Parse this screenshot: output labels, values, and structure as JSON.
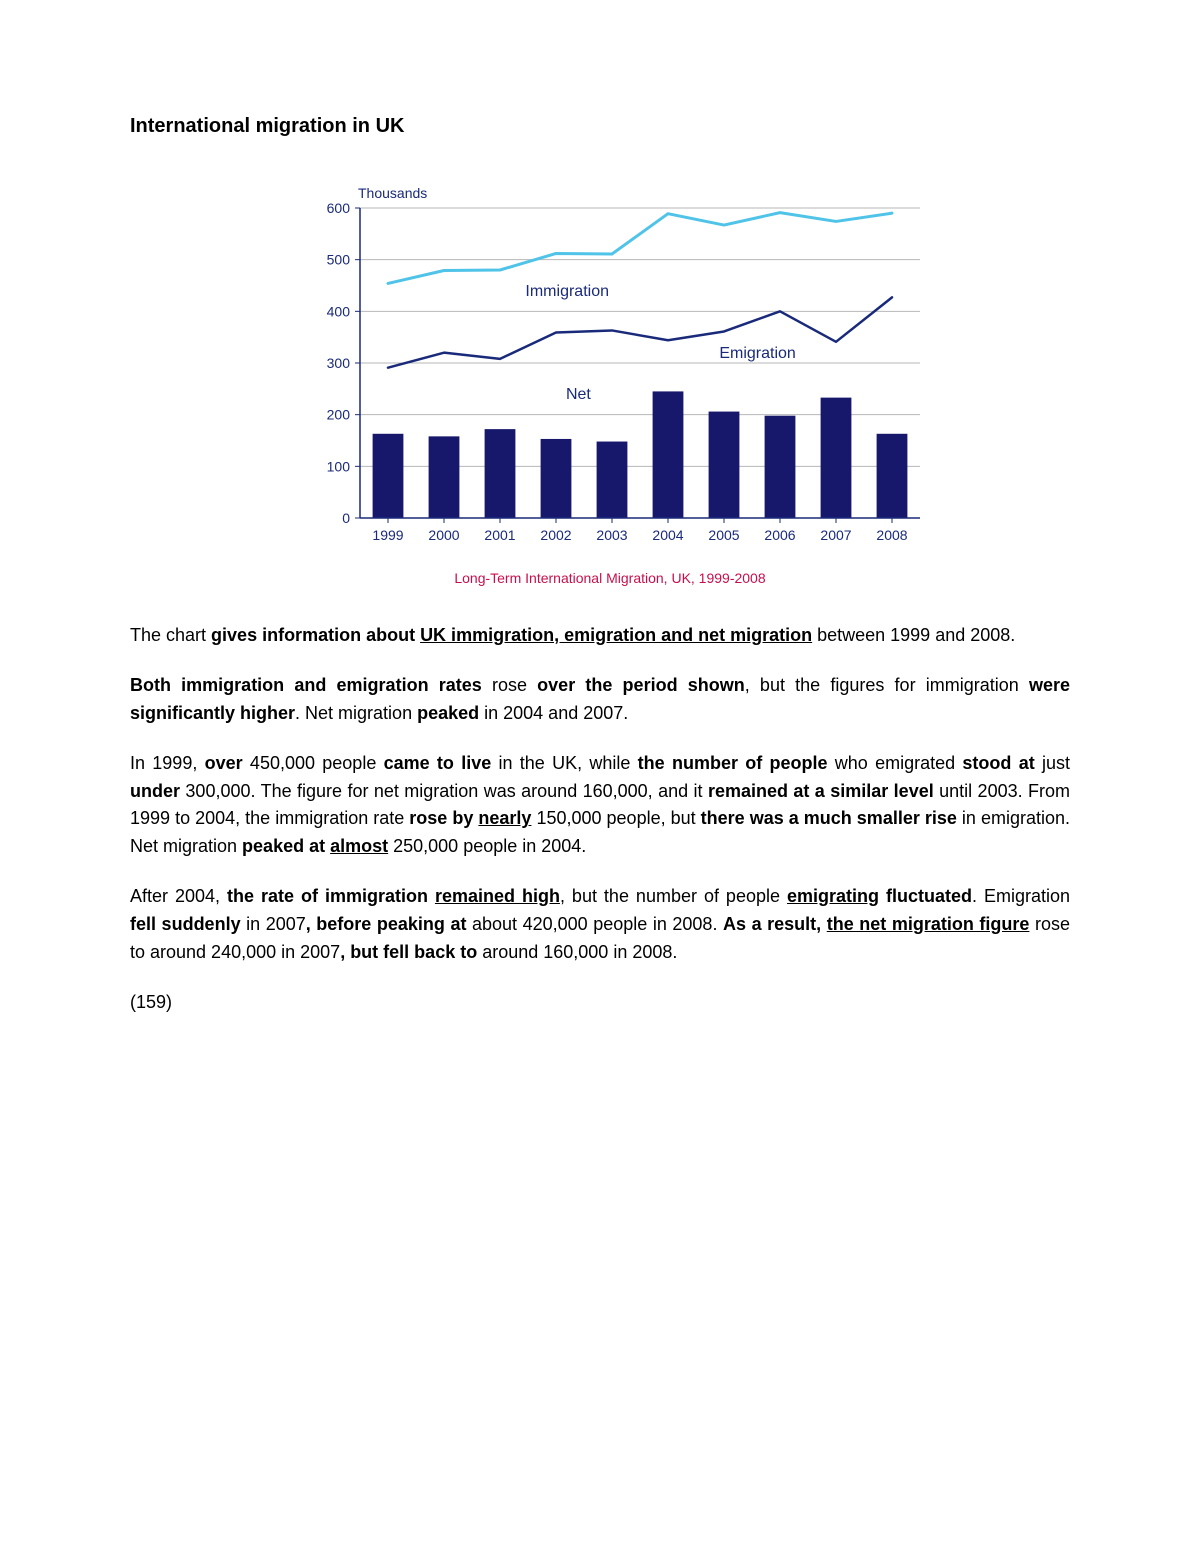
{
  "title": "International migration in UK",
  "chart": {
    "type": "combo-bar-line",
    "y_axis_title": "Thousands",
    "caption": "Long-Term International Migration, UK, 1999-2008",
    "categories": [
      "1999",
      "2000",
      "2001",
      "2002",
      "2003",
      "2004",
      "2005",
      "2006",
      "2007",
      "2008"
    ],
    "ylim": [
      0,
      600
    ],
    "ytick_step": 100,
    "grid_color": "#b7b7b7",
    "axis_color": "#1a2a7a",
    "background_color": "#ffffff",
    "bar": {
      "label": "Net",
      "values": [
        163,
        158,
        172,
        153,
        148,
        245,
        206,
        198,
        233,
        163
      ],
      "color": "#17176b",
      "bar_width_ratio": 0.55
    },
    "lines": [
      {
        "label": "Immigration",
        "values": [
          454,
          479,
          480,
          512,
          511,
          589,
          567,
          591,
          574,
          590
        ],
        "color": "#4fc3e8",
        "width": 3
      },
      {
        "label": "Emigration",
        "values": [
          291,
          320,
          308,
          359,
          363,
          344,
          361,
          400,
          341,
          427
        ],
        "color": "#1a2a7a",
        "width": 2.5
      }
    ],
    "label_positions": {
      "Immigration": {
        "x_cat_index": 3.2,
        "y": 430
      },
      "Emigration": {
        "x_cat_index": 6.6,
        "y": 310
      },
      "Net": {
        "x_cat_index": 3.4,
        "y": 230
      }
    },
    "title_fontsize": 14,
    "tick_fontsize": 14,
    "caption_color": "#c80f4b"
  },
  "paragraphs": {
    "p1": [
      {
        "t": "The chart ",
        "s": ""
      },
      {
        "t": "gives information about ",
        "s": "b"
      },
      {
        "t": "UK immigration, emigration and net migration",
        "s": "bu"
      },
      {
        "t": " between 1999 and 2008.",
        "s": ""
      }
    ],
    "p2": [
      {
        "t": "Both immigration and emigration rates",
        "s": "b"
      },
      {
        "t": " rose ",
        "s": ""
      },
      {
        "t": "over the period shown",
        "s": "b"
      },
      {
        "t": ", but the figures for immigration ",
        "s": ""
      },
      {
        "t": "were significantly higher",
        "s": "b"
      },
      {
        "t": ". Net migration ",
        "s": ""
      },
      {
        "t": "peaked",
        "s": "b"
      },
      {
        "t": " in 2004 and 2007.",
        "s": ""
      }
    ],
    "p3": [
      {
        "t": "In 1999, ",
        "s": ""
      },
      {
        "t": "over",
        "s": "b"
      },
      {
        "t": " 450,000 people ",
        "s": ""
      },
      {
        "t": "came to live",
        "s": "b"
      },
      {
        "t": " in the UK, while ",
        "s": ""
      },
      {
        "t": "the number of people",
        "s": "b"
      },
      {
        "t": " who emigrated ",
        "s": ""
      },
      {
        "t": "stood at",
        "s": "b"
      },
      {
        "t": " just ",
        "s": ""
      },
      {
        "t": "under",
        "s": "b"
      },
      {
        "t": " 300,000. The figure for net migration was around 160,000, and it ",
        "s": ""
      },
      {
        "t": "remained at a similar level",
        "s": "b"
      },
      {
        "t": " until 2003. From 1999 to 2004, the immigration rate ",
        "s": ""
      },
      {
        "t": "rose by ",
        "s": "b"
      },
      {
        "t": "nearly",
        "s": "bu"
      },
      {
        "t": " 150,000 people, but ",
        "s": ""
      },
      {
        "t": "there was a much smaller rise",
        "s": "b"
      },
      {
        "t": " in emigration. Net migration ",
        "s": ""
      },
      {
        "t": "peaked at ",
        "s": "b"
      },
      {
        "t": "almost",
        "s": "bu"
      },
      {
        "t": " 250,000 people in 2004.",
        "s": ""
      }
    ],
    "p4": [
      {
        "t": "After 2004, ",
        "s": ""
      },
      {
        "t": "the rate of immigration ",
        "s": "b"
      },
      {
        "t": "remained high",
        "s": "bu"
      },
      {
        "t": ", but the number of people ",
        "s": ""
      },
      {
        "t": "emigrating",
        "s": "bu"
      },
      {
        "t": " fluctuated",
        "s": "b"
      },
      {
        "t": ". Emigration ",
        "s": ""
      },
      {
        "t": "fell suddenly",
        "s": "b"
      },
      {
        "t": " in 2007",
        "s": ""
      },
      {
        "t": ", before peaking at",
        "s": "b"
      },
      {
        "t": " about 420,000 people in 2008. ",
        "s": ""
      },
      {
        "t": "As a result, ",
        "s": "b"
      },
      {
        "t": "the net migration figure",
        "s": "bu"
      },
      {
        "t": " rose to around 240,000 in 2007",
        "s": ""
      },
      {
        "t": ", but fell back to",
        "s": "b"
      },
      {
        "t": " around 160,000 in 2008.",
        "s": ""
      }
    ],
    "p5": [
      {
        "t": "(159)",
        "s": ""
      }
    ]
  }
}
